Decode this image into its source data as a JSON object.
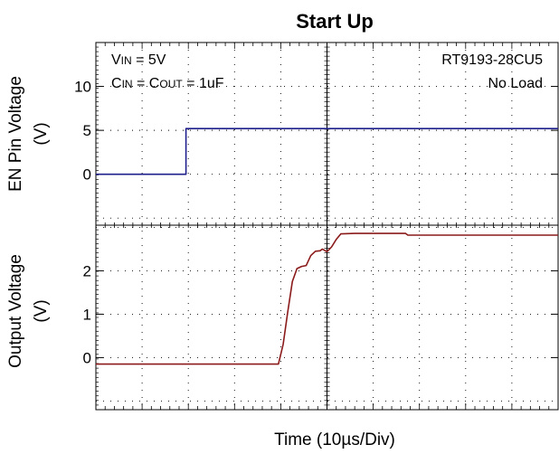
{
  "chart_data": {
    "type": "line",
    "title": "Start Up",
    "xlabel": "Time (10µs/Div)",
    "x_divisions": 10,
    "x_unit": "10µs/Div",
    "panels": [
      {
        "ylabel_line1": "EN Pin Voltage",
        "ylabel_line2": "(V)",
        "ylim": [
          -5.8,
          15
        ],
        "yticks": [
          0,
          5,
          10
        ],
        "ytick_labels": [
          "0",
          "5",
          "10"
        ],
        "series": [
          {
            "color": "#1f1f8c",
            "x": [
              0,
              1.95,
              1.95,
              10
            ],
            "y": [
              0,
              0,
              5.2,
              5.2
            ]
          }
        ],
        "annotations": [
          {
            "parts": [
              {
                "text": "V"
              },
              {
                "text": "IN",
                "sub": true
              },
              {
                "text": " = 5V"
              }
            ]
          },
          {
            "parts": [
              {
                "text": "C"
              },
              {
                "text": "IN",
                "sub": true
              },
              {
                "text": " = C"
              },
              {
                "text": "OUT",
                "sub": true
              },
              {
                "text": " = 1uF"
              }
            ]
          },
          {
            "parts": [
              {
                "text": "RT9193-28CU5"
              }
            ]
          },
          {
            "parts": [
              {
                "text": "No Load"
              }
            ]
          }
        ]
      },
      {
        "ylabel_line1": "Output Voltage",
        "ylabel_line2": "(V)",
        "ylim": [
          -1.2,
          3.05
        ],
        "yticks": [
          0,
          1,
          2
        ],
        "ytick_labels": [
          "0",
          "1",
          "2"
        ],
        "series": [
          {
            "color": "#8b1a1a",
            "x": [
              0,
              3.95,
              4.05,
              4.15,
              4.25,
              4.35,
              4.45,
              4.55,
              4.65,
              4.75,
              4.85,
              4.9,
              5.0,
              5.1,
              5.2,
              5.3,
              5.6,
              6.7,
              6.75,
              6.8,
              10
            ],
            "y": [
              -0.15,
              -0.15,
              0.3,
              1.05,
              1.75,
              2.05,
              2.1,
              2.12,
              2.35,
              2.45,
              2.46,
              2.5,
              2.44,
              2.55,
              2.72,
              2.85,
              2.86,
              2.86,
              2.82,
              2.82,
              2.82
            ]
          }
        ]
      }
    ]
  }
}
